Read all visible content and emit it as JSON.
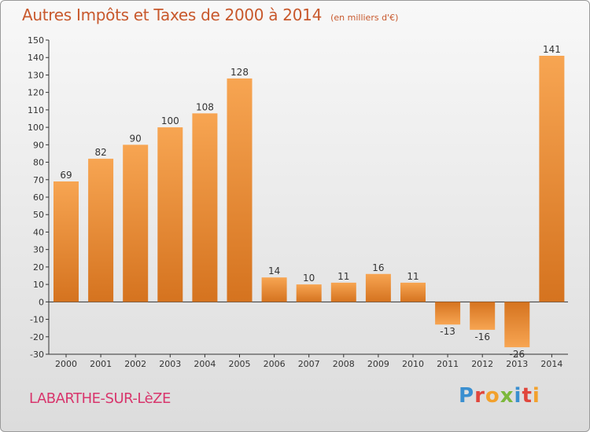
{
  "header": {
    "title": "Autres Impôts et Taxes de 2000 à 2014",
    "unit": "(en milliers d'€)"
  },
  "commune": "LABARTHE-SUR-LèZE",
  "logo": {
    "text": "Proxiti",
    "letters": [
      {
        "char": "P",
        "color": "#3a8fd0"
      },
      {
        "char": "r",
        "color": "#e0463c"
      },
      {
        "char": "o",
        "color": "#f2a12d"
      },
      {
        "char": "x",
        "color": "#7cb83b"
      },
      {
        "char": "i",
        "color": "#3a8fd0"
      },
      {
        "char": "t",
        "color": "#e0463c"
      },
      {
        "char": "i",
        "color": "#f2a12d"
      }
    ]
  },
  "colors": {
    "bar_light": "#f7a552",
    "bar_dark": "#d5731f",
    "title": "#c8582c",
    "commune": "#d8356c"
  },
  "chart_data": {
    "type": "bar",
    "title": "Autres Impôts et Taxes de 2000 à 2014",
    "subtitle": "(en milliers d'€)",
    "categories": [
      "2000",
      "2001",
      "2002",
      "2003",
      "2004",
      "2005",
      "2006",
      "2007",
      "2008",
      "2009",
      "2010",
      "2011",
      "2012",
      "2013",
      "2014"
    ],
    "values": [
      69,
      82,
      90,
      100,
      108,
      128,
      14,
      10,
      11,
      16,
      11,
      -13,
      -16,
      -26,
      141
    ],
    "labels": [
      "69",
      "82",
      "90",
      "100",
      "108",
      "128",
      "14",
      "10",
      "11",
      "16",
      "11",
      "-13",
      "-16",
      "-26",
      "141"
    ],
    "ylim": [
      -30,
      150
    ],
    "yticks": [
      -30,
      -20,
      -10,
      0,
      10,
      20,
      30,
      40,
      50,
      60,
      70,
      80,
      90,
      100,
      110,
      120,
      130,
      140,
      150
    ],
    "grid": false,
    "legend": "none"
  }
}
